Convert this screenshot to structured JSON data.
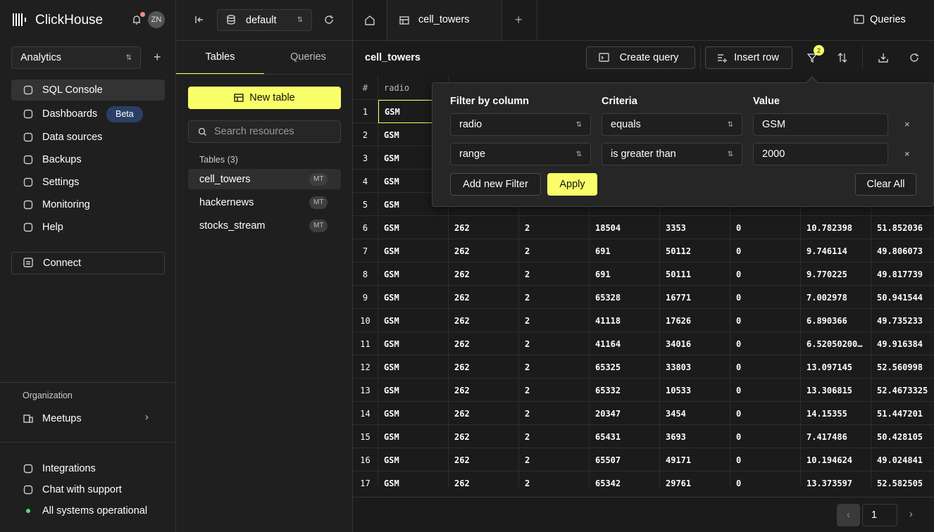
{
  "sidebar": {
    "brand": "ClickHouse",
    "avatar": "ZN",
    "service": "Analytics",
    "nav": [
      {
        "label": "SQL Console"
      },
      {
        "label": "Dashboards",
        "badge": "Beta"
      },
      {
        "label": "Data sources"
      },
      {
        "label": "Backups"
      },
      {
        "label": "Settings"
      },
      {
        "label": "Monitoring"
      },
      {
        "label": "Help"
      }
    ],
    "connect": "Connect",
    "org_label": "Organization",
    "org": "Meetups",
    "footer": [
      "Integrations",
      "Chat with support",
      "All systems operational"
    ]
  },
  "panel": {
    "database": "default",
    "tabs": [
      "Tables",
      "Queries"
    ],
    "new_table": "New table",
    "search_placeholder": "Search resources",
    "section": "Tables (3)",
    "tables": [
      {
        "name": "cell_towers",
        "engine": "MT"
      },
      {
        "name": "hackernews",
        "engine": "MT"
      },
      {
        "name": "stocks_stream",
        "engine": "MT"
      }
    ]
  },
  "main": {
    "tab": "cell_towers",
    "queries": "Queries",
    "title": "cell_towers",
    "create_query": "Create query",
    "insert_row": "Insert row",
    "filter_count": "2",
    "table": {
      "header": [
        "#",
        "radio"
      ],
      "rows": [
        [
          "1",
          "GSM"
        ],
        [
          "2",
          "GSM"
        ],
        [
          "3",
          "GSM"
        ],
        [
          "4",
          "GSM"
        ],
        [
          "5",
          "GSM"
        ],
        [
          "6",
          "GSM",
          "262",
          "2",
          "18504",
          "3353",
          "0",
          "10.782398",
          "51.852036"
        ],
        [
          "7",
          "GSM",
          "262",
          "2",
          "691",
          "50112",
          "0",
          "9.746114",
          "49.806073"
        ],
        [
          "8",
          "GSM",
          "262",
          "2",
          "691",
          "50111",
          "0",
          "9.770225",
          "49.817739"
        ],
        [
          "9",
          "GSM",
          "262",
          "2",
          "65328",
          "16771",
          "0",
          "7.002978",
          "50.941544"
        ],
        [
          "10",
          "GSM",
          "262",
          "2",
          "41118",
          "17626",
          "0",
          "6.890366",
          "49.735233"
        ],
        [
          "11",
          "GSM",
          "262",
          "2",
          "41164",
          "34016",
          "0",
          "6.52050200…",
          "49.916384"
        ],
        [
          "12",
          "GSM",
          "262",
          "2",
          "65325",
          "33803",
          "0",
          "13.097145",
          "52.560998"
        ],
        [
          "13",
          "GSM",
          "262",
          "2",
          "65332",
          "10533",
          "0",
          "13.306815",
          "52.4673325"
        ],
        [
          "14",
          "GSM",
          "262",
          "2",
          "20347",
          "3454",
          "0",
          "14.15355",
          "51.447201"
        ],
        [
          "15",
          "GSM",
          "262",
          "2",
          "65431",
          "3693",
          "0",
          "7.417486",
          "50.428105"
        ],
        [
          "16",
          "GSM",
          "262",
          "2",
          "65507",
          "49171",
          "0",
          "10.194624",
          "49.024841"
        ],
        [
          "17",
          "GSM",
          "262",
          "2",
          "65342",
          "29761",
          "0",
          "13.373597",
          "52.582505"
        ]
      ]
    },
    "filter": {
      "headers": [
        "Filter by column",
        "Criteria",
        "Value"
      ],
      "filters": [
        {
          "column": "radio",
          "criteria": "equals",
          "value": "GSM"
        },
        {
          "column": "range",
          "criteria": "is greater than",
          "value": "2000"
        }
      ],
      "add": "Add new Filter",
      "apply": "Apply",
      "clear": "Clear All"
    },
    "page": "1"
  }
}
